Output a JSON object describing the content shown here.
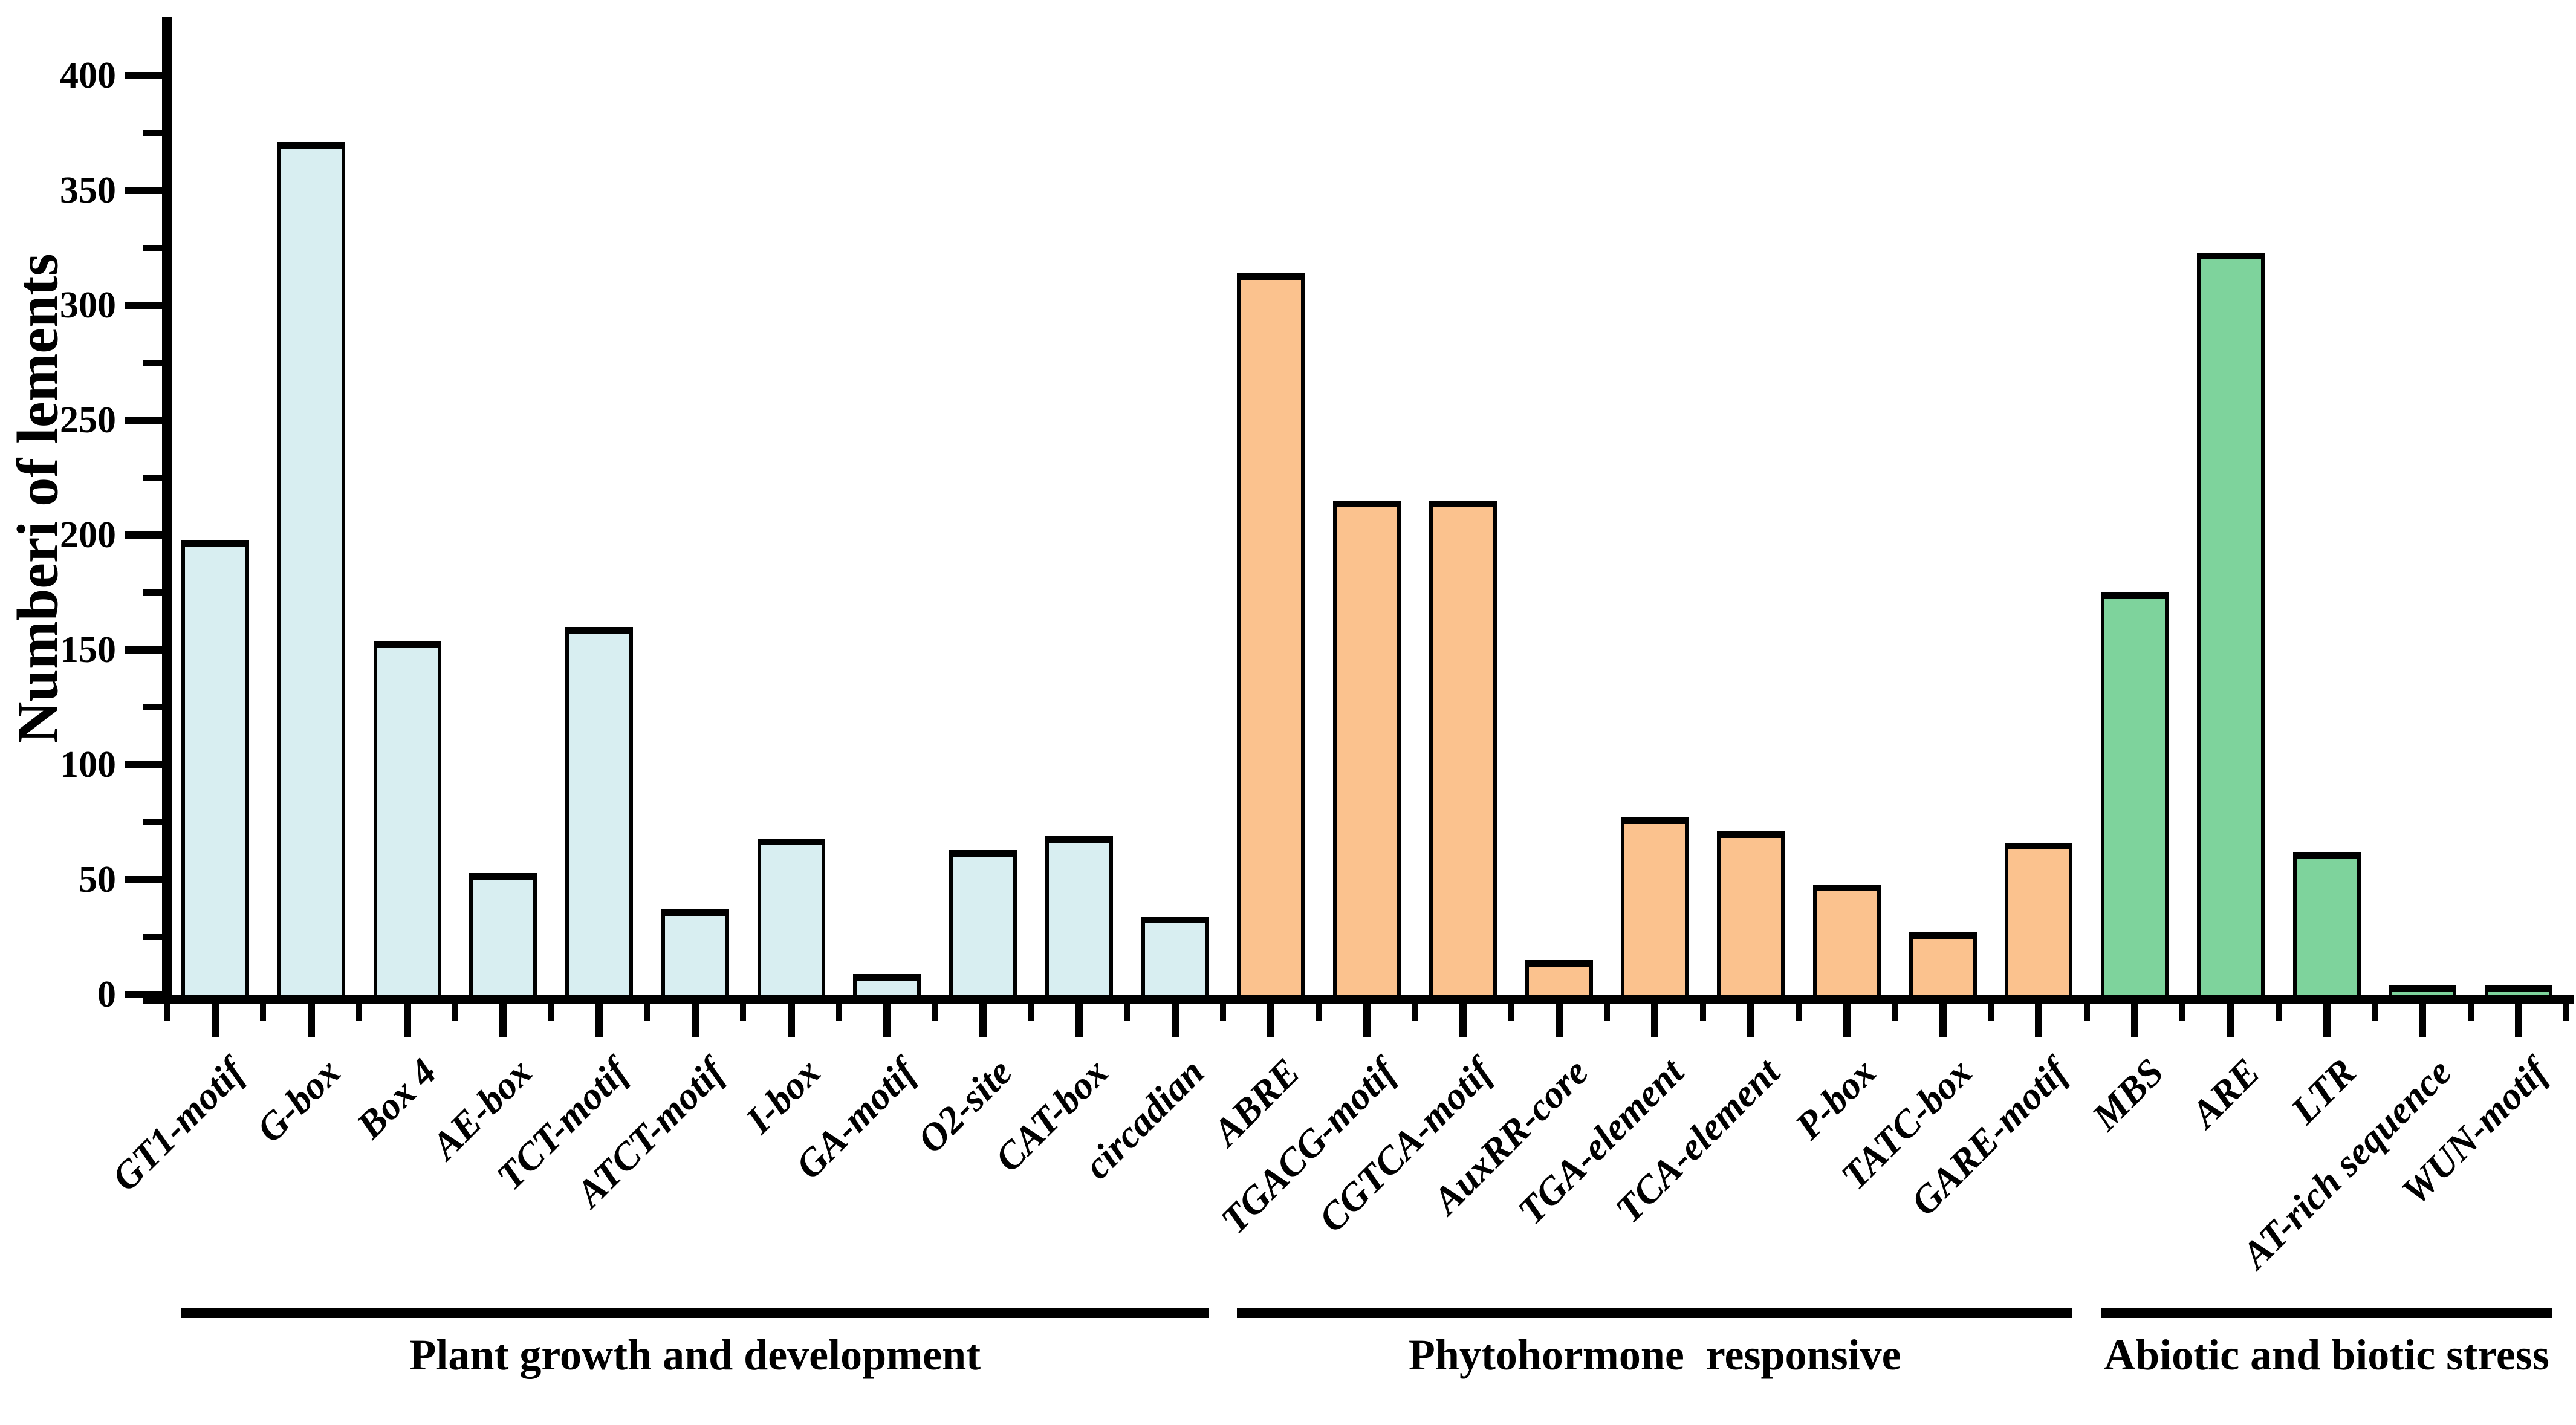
{
  "figure": {
    "background": "#ffffff",
    "axis_color": "#000000"
  },
  "chart_data": {
    "type": "bar",
    "title": "",
    "xlabel": "",
    "ylabel": "Numberi of lements",
    "ylim": [
      0,
      420
    ],
    "yticks": [
      0,
      50,
      100,
      150,
      200,
      250,
      300,
      350,
      400
    ],
    "grid": false,
    "legend": "none",
    "categories": [
      "GT1-motif",
      "G-box",
      "Box 4",
      "AE-box",
      "TCT-motif",
      "ATCT-motif",
      "I-box",
      "GA-motif",
      "O2-site",
      "CAT-box",
      "circadian",
      "ABRE",
      "TGACG-motif",
      "CGTCA-motif",
      "AuxRR-core",
      "TGA-element",
      "TCA-element",
      "P-box",
      "TATC-box",
      "GARE-motif",
      "MBS",
      "ARE",
      "LTR",
      "AT-rich sequence",
      "WUN-motif"
    ],
    "values": [
      198,
      371,
      154,
      53,
      160,
      37,
      68,
      9,
      63,
      69,
      34,
      314,
      215,
      215,
      15,
      77,
      71,
      48,
      27,
      66,
      175,
      323,
      62,
      4,
      4
    ],
    "groups": [
      {
        "label": "Plant growth and development",
        "start": 0,
        "end": 10,
        "color": "#d8eef1"
      },
      {
        "label": "Phytohormone  responsive",
        "start": 11,
        "end": 19,
        "color": "#fbc28e"
      },
      {
        "label": "Abiotic and biotic stress",
        "start": 20,
        "end": 24,
        "color": "#7ed39c"
      }
    ],
    "bar_border_color": "#000000"
  }
}
